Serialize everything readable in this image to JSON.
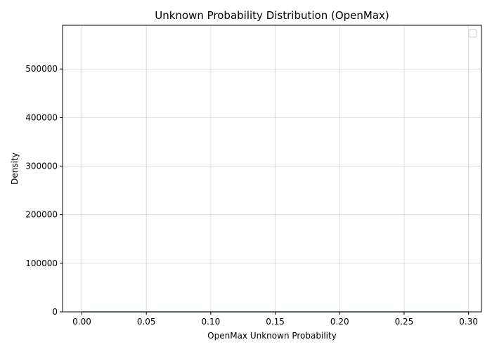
{
  "chart_data": {
    "type": "area",
    "title": "Unknown Probability Distribution (OpenMax)",
    "xlabel": "OpenMax Unknown Probability",
    "ylabel": "Density",
    "xlim": [
      -0.015,
      0.31
    ],
    "ylim": [
      0,
      590000
    ],
    "xticks": [
      0.0,
      0.05,
      0.1,
      0.15,
      0.2,
      0.25,
      0.3
    ],
    "xtick_labels": [
      "0.00",
      "0.05",
      "0.10",
      "0.15",
      "0.20",
      "0.25",
      "0.30"
    ],
    "yticks": [
      0,
      100000,
      200000,
      300000,
      400000,
      500000
    ],
    "ytick_labels": [
      "0",
      "100000",
      "200000",
      "300000",
      "400000",
      "500000"
    ],
    "grid": true,
    "legend": {
      "placement": "top-right",
      "entries": []
    },
    "series": [
      {
        "color": "#5b8fa8",
        "x": [
          0.0,
          0.3
        ],
        "y": [
          0,
          0
        ]
      }
    ]
  }
}
